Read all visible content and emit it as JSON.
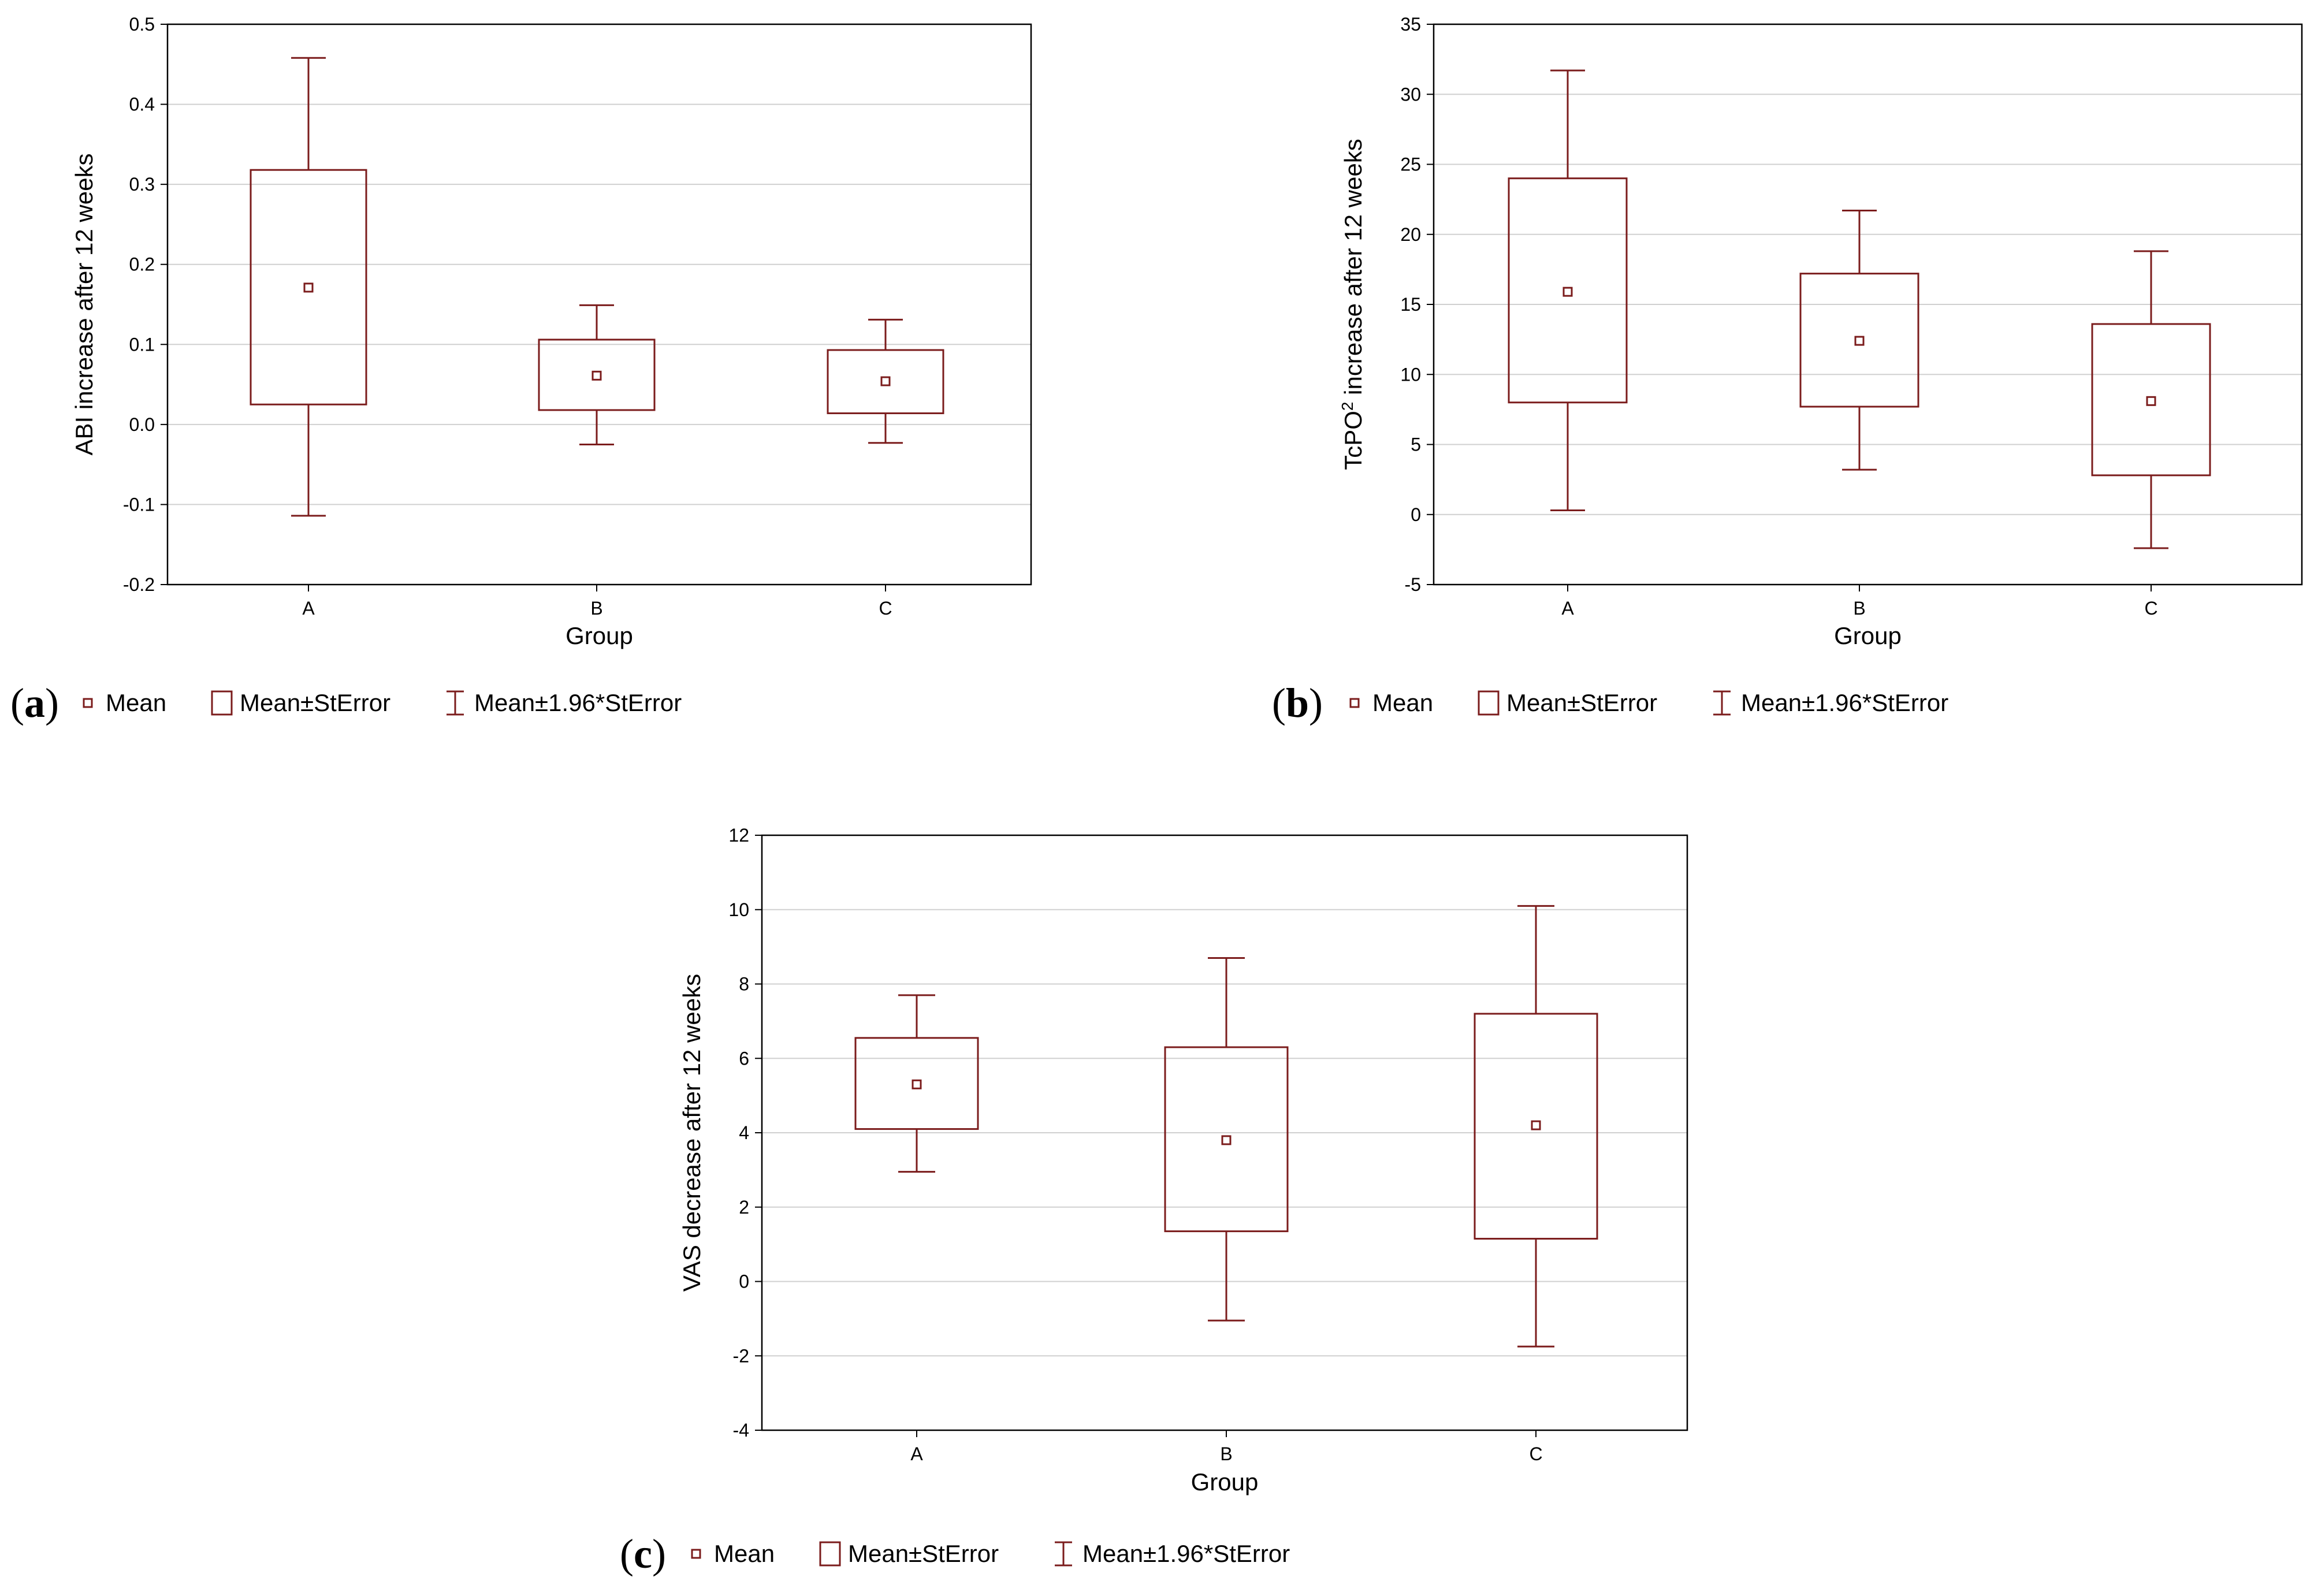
{
  "colors": {
    "mark": "#7b1c1c",
    "grid": "#d0d0d0",
    "frame": "#000000"
  },
  "legend": {
    "mean": "Mean",
    "se": "Mean±StError",
    "ci": "Mean±1.96*StError"
  },
  "legend_icons": [
    "mean-square-icon",
    "box-icon",
    "whisker-icon"
  ],
  "chart_data": [
    {
      "type": "box",
      "panel": "a",
      "xlabel": "Group",
      "ylabel": "ABI increase after 12 weeks",
      "ylim": [
        -0.2,
        0.5
      ],
      "yticks": [
        -0.2,
        -0.1,
        0.0,
        0.1,
        0.2,
        0.3,
        0.4,
        0.5
      ],
      "ytick_labels": [
        "-0.2",
        "-0.1",
        "0.0",
        "0.1",
        "0.2",
        "0.3",
        "0.4",
        "0.5"
      ],
      "categories": [
        "A",
        "B",
        "C"
      ],
      "mean": [
        0.171,
        0.061,
        0.054
      ],
      "se_low": [
        0.025,
        0.018,
        0.014
      ],
      "se_high": [
        0.318,
        0.106,
        0.093
      ],
      "ci_low": [
        -0.114,
        -0.025,
        -0.023
      ],
      "ci_high": [
        0.458,
        0.149,
        0.131
      ]
    },
    {
      "type": "box",
      "panel": "b",
      "xlabel": "Group",
      "ylabel": "TcPO2 increase after 12 weeks",
      "ylim": [
        -5,
        35
      ],
      "yticks": [
        -5,
        0,
        5,
        10,
        15,
        20,
        25,
        30,
        35
      ],
      "ytick_labels": [
        "-5",
        "0",
        "5",
        "10",
        "15",
        "20",
        "25",
        "30",
        "35"
      ],
      "categories": [
        "A",
        "B",
        "C"
      ],
      "mean": [
        15.9,
        12.4,
        8.1
      ],
      "se_low": [
        8.0,
        7.7,
        2.8
      ],
      "se_high": [
        24.0,
        17.2,
        13.6
      ],
      "ci_low": [
        0.3,
        3.2,
        -2.4
      ],
      "ci_high": [
        31.7,
        21.7,
        18.8
      ]
    },
    {
      "type": "box",
      "panel": "c",
      "xlabel": "Group",
      "ylabel": "VAS decrease after 12 weeks",
      "ylim": [
        -4,
        12
      ],
      "yticks": [
        -4,
        -2,
        0,
        2,
        4,
        6,
        8,
        10,
        12
      ],
      "ytick_labels": [
        "-4",
        "-2",
        "0",
        "2",
        "4",
        "6",
        "8",
        "10",
        "12"
      ],
      "categories": [
        "A",
        "B",
        "C"
      ],
      "mean": [
        5.3,
        3.8,
        4.2
      ],
      "se_low": [
        4.1,
        1.35,
        1.15
      ],
      "se_high": [
        6.55,
        6.3,
        7.2
      ],
      "ci_low": [
        2.95,
        -1.05,
        -1.75
      ],
      "ci_high": [
        7.7,
        8.7,
        10.1
      ]
    }
  ]
}
